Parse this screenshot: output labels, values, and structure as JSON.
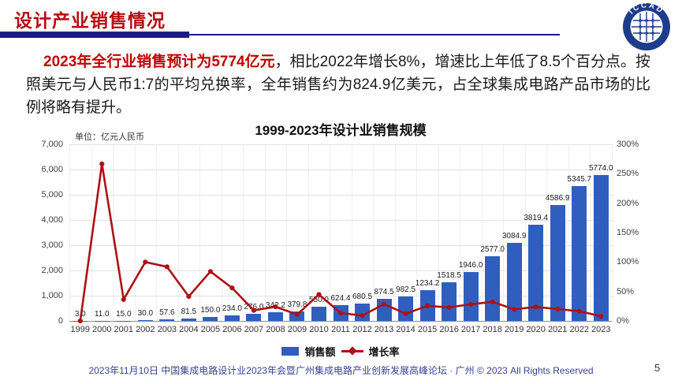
{
  "header": {
    "title": "设计产业销售情况",
    "logo_text": "ICCAD"
  },
  "paragraph": {
    "highlight": "2023年全行业销售预计为5774亿元",
    "rest": "，相比2022年增长8%，增速比上年低了8.5个百分点。按照美元与人民币1:7的平均兑换率，全年销售约为824.9亿美元，占全球集成电路产品市场的比例将略有提升。"
  },
  "chart_data": {
    "type": "bar",
    "title": "1999-2023年设计业销售规模",
    "unit_label": "单位：亿元人民币",
    "categories": [
      "1999",
      "2000",
      "2001",
      "2002",
      "2003",
      "2004",
      "2005",
      "2006",
      "2007",
      "2008",
      "2009",
      "2010",
      "2011",
      "2012",
      "2013",
      "2014",
      "2015",
      "2016",
      "2017",
      "2018",
      "2019",
      "2020",
      "2021",
      "2022",
      "2023"
    ],
    "series": [
      {
        "name": "销售额",
        "kind": "bar",
        "axis": "left",
        "color": "#2f5fbe",
        "values": [
          3.0,
          11.0,
          15.0,
          30.0,
          57.6,
          81.5,
          150.0,
          234.0,
          276.0,
          342.2,
          379.8,
          550.0,
          624.4,
          680.5,
          874.5,
          982.5,
          1234.2,
          1518.5,
          1946.0,
          2577.0,
          3084.9,
          3819.4,
          4586.9,
          5345.7,
          5774.0
        ]
      },
      {
        "name": "增长率",
        "kind": "line",
        "axis": "right",
        "color": "#ae1117",
        "values": [
          0.0,
          266.7,
          36.4,
          100.0,
          92.0,
          41.5,
          84.0,
          56.0,
          17.9,
          24.0,
          11.0,
          44.8,
          13.5,
          9.0,
          28.5,
          12.3,
          25.6,
          23.0,
          28.2,
          32.4,
          19.7,
          23.8,
          20.1,
          16.5,
          8.0
        ]
      }
    ],
    "bar_labels": [
      "3.0",
      "11.0",
      "15.0",
      "30.0",
      "57.6",
      "81.5",
      "150.0",
      "234.0",
      "276.0",
      "342.2",
      "379.8",
      "550.0",
      "624.4",
      "680.5",
      "874.5",
      "982.5",
      "1234.2",
      "1518.5",
      "1946.0",
      "2577.0",
      "3084.9",
      "3819.4",
      "4586.9",
      "5345.7",
      "5774.0"
    ],
    "left_axis": {
      "min": 0,
      "max": 7000,
      "ticks": [
        "0",
        "1,000",
        "2,000",
        "3,000",
        "4,000",
        "5,000",
        "6,000",
        "7,000"
      ]
    },
    "right_axis": {
      "min": 0,
      "max": 300,
      "ticks": [
        "0%",
        "50%",
        "100%",
        "150%",
        "200%",
        "250%",
        "300%"
      ]
    },
    "grid": true,
    "legend_position": "bottom"
  },
  "legend": {
    "sales_label": "销售额",
    "growth_label": "增长率"
  },
  "footer": {
    "text": "2023年11月10日 中国集成电路设计业2023年会暨广州集成电路产业创新发展高峰论坛 · 广州 © 2023 All Rights Reserved",
    "page_number": "5"
  },
  "colors": {
    "title_red": "#b60d10",
    "highlight_red": "#c00000",
    "navy": "#1a1a8a",
    "bar_blue": "#2f5fbe",
    "line_red": "#ae1117",
    "footer_navy": "#3a3f8f",
    "logo_navy": "#1e3c8c"
  }
}
